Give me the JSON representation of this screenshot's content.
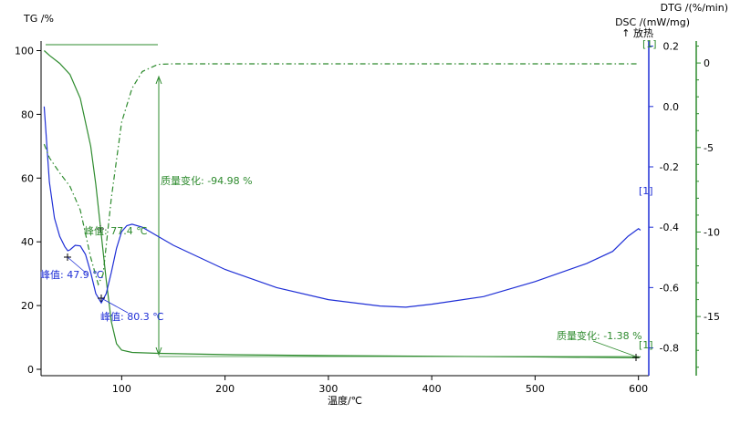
{
  "chart_data": {
    "type": "line",
    "xlabel": "温度/℃",
    "x_range": [
      22,
      610
    ],
    "x_ticks": [
      100,
      200,
      300,
      400,
      500,
      600
    ],
    "axes": {
      "tg": {
        "label": "TG /%",
        "range": [
          -2,
          103
        ],
        "ticks": [
          0,
          20,
          40,
          60,
          80,
          100
        ],
        "color": "#000000"
      },
      "dsc": {
        "label": "DSC /(mW/mg)",
        "annotation": "↑ 放热",
        "range": [
          -0.892,
          0.217
        ],
        "ticks": [
          -0.8,
          -0.6,
          -0.4,
          -0.2,
          0.0,
          0.2
        ],
        "color": "#1f2fd6"
      },
      "dtg": {
        "label": "DTG /(%/min)",
        "range": [
          -18.5,
          1.3
        ],
        "ticks": [
          -15,
          -10,
          -5,
          0
        ],
        "color": "#2e8b2e"
      }
    },
    "series": [
      {
        "key": "tg",
        "axis": "tg",
        "style": "solid",
        "color": "#2e8b2e",
        "points": [
          [
            25,
            100
          ],
          [
            30,
            98.5
          ],
          [
            40,
            96
          ],
          [
            50,
            92.5
          ],
          [
            60,
            85
          ],
          [
            70,
            70
          ],
          [
            75,
            58
          ],
          [
            80,
            43
          ],
          [
            85,
            28
          ],
          [
            90,
            15
          ],
          [
            95,
            8
          ],
          [
            100,
            6
          ],
          [
            110,
            5.3
          ],
          [
            135,
            5.0
          ],
          [
            200,
            4.6
          ],
          [
            300,
            4.3
          ],
          [
            400,
            4.1
          ],
          [
            500,
            3.9
          ],
          [
            600,
            3.6
          ],
          [
            602,
            4.0
          ]
        ]
      },
      {
        "key": "dsc",
        "axis": "dsc",
        "style": "solid",
        "color": "#1f2fd6",
        "points": [
          [
            25,
            0.0
          ],
          [
            27,
            -0.1
          ],
          [
            30,
            -0.25
          ],
          [
            35,
            -0.37
          ],
          [
            40,
            -0.43
          ],
          [
            45,
            -0.465
          ],
          [
            47.9,
            -0.478
          ],
          [
            50,
            -0.475
          ],
          [
            55,
            -0.46
          ],
          [
            60,
            -0.462
          ],
          [
            65,
            -0.49
          ],
          [
            70,
            -0.55
          ],
          [
            75,
            -0.62
          ],
          [
            80.3,
            -0.651
          ],
          [
            85,
            -0.62
          ],
          [
            90,
            -0.55
          ],
          [
            95,
            -0.47
          ],
          [
            100,
            -0.415
          ],
          [
            105,
            -0.395
          ],
          [
            110,
            -0.39
          ],
          [
            120,
            -0.4
          ],
          [
            135,
            -0.43
          ],
          [
            150,
            -0.46
          ],
          [
            200,
            -0.54
          ],
          [
            250,
            -0.6
          ],
          [
            300,
            -0.64
          ],
          [
            350,
            -0.661
          ],
          [
            375,
            -0.665
          ],
          [
            400,
            -0.655
          ],
          [
            450,
            -0.63
          ],
          [
            500,
            -0.58
          ],
          [
            550,
            -0.52
          ],
          [
            575,
            -0.48
          ],
          [
            590,
            -0.43
          ],
          [
            600,
            -0.405
          ],
          [
            602,
            -0.41
          ]
        ]
      },
      {
        "key": "dtg",
        "axis": "dtg",
        "style": "dashdot",
        "color": "#2e8b2e",
        "points": [
          [
            25,
            -4.8
          ],
          [
            30,
            -5.6
          ],
          [
            40,
            -6.5
          ],
          [
            50,
            -7.3
          ],
          [
            60,
            -8.7
          ],
          [
            70,
            -11.5
          ],
          [
            77.4,
            -13.1
          ],
          [
            82,
            -12.5
          ],
          [
            90,
            -8.0
          ],
          [
            100,
            -3.5
          ],
          [
            110,
            -1.5
          ],
          [
            120,
            -0.5
          ],
          [
            135,
            -0.08
          ],
          [
            150,
            -0.05
          ],
          [
            300,
            -0.05
          ],
          [
            600,
            -0.05
          ]
        ]
      }
    ],
    "annotations": {
      "mass_change_1": "质量变化: -94.98 %",
      "mass_change_2": "质量变化: -1.38 %",
      "peak_dtg": "峰值: 77.4 ℃",
      "peak_dsc_1": "峰值: 47.9 ℃",
      "peak_dsc_2": "峰值: 80.3 ℃",
      "marker": "[1]"
    }
  }
}
